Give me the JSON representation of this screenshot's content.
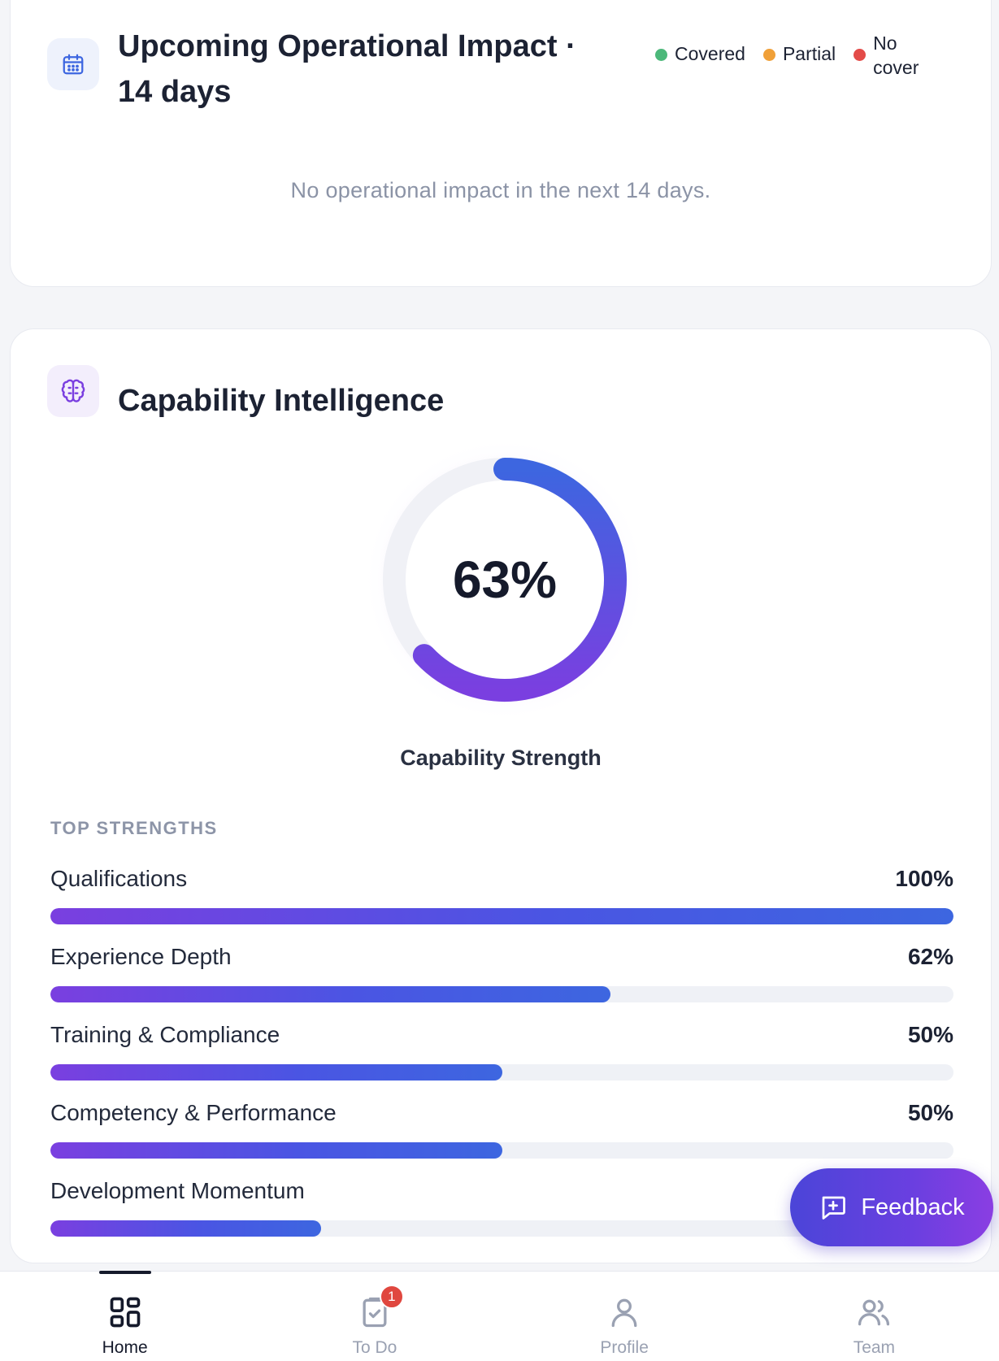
{
  "impact_card": {
    "title": "Upcoming Operational Impact · 14 days",
    "icon": "calendar-icon",
    "legend": [
      {
        "label": "Covered",
        "color": "#4cb87a"
      },
      {
        "label": "Partial",
        "color": "#f0a038"
      },
      {
        "label": "No cover",
        "color": "#e34b48"
      }
    ],
    "empty_text": "No operational impact in the next 14 days."
  },
  "capability_card": {
    "title": "Capability Intelligence",
    "icon": "brain-icon",
    "gauge": {
      "value": 63,
      "display": "63%",
      "caption": "Capability Strength"
    },
    "section_label": "TOP STRENGTHS",
    "strengths": [
      {
        "label": "Qualifications",
        "value": 100,
        "display": "100%"
      },
      {
        "label": "Experience Depth",
        "value": 62,
        "display": "62%"
      },
      {
        "label": "Training & Compliance",
        "value": 50,
        "display": "50%"
      },
      {
        "label": "Competency & Performance",
        "value": 50,
        "display": "50%"
      },
      {
        "label": "Development Momentum",
        "value": 30,
        "display": ""
      }
    ]
  },
  "feedback": {
    "label": "Feedback",
    "icon": "message-plus-icon"
  },
  "nav": {
    "items": [
      {
        "label": "Home",
        "icon": "grid-icon",
        "active": true
      },
      {
        "label": "To Do",
        "icon": "clipboard-check-icon",
        "badge": "1"
      },
      {
        "label": "Profile",
        "icon": "user-icon"
      },
      {
        "label": "Team",
        "icon": "users-icon"
      }
    ]
  },
  "colors": {
    "accent_start": "#7a3fe0",
    "accent_end": "#3d66e0",
    "badge": "#e0473f"
  }
}
